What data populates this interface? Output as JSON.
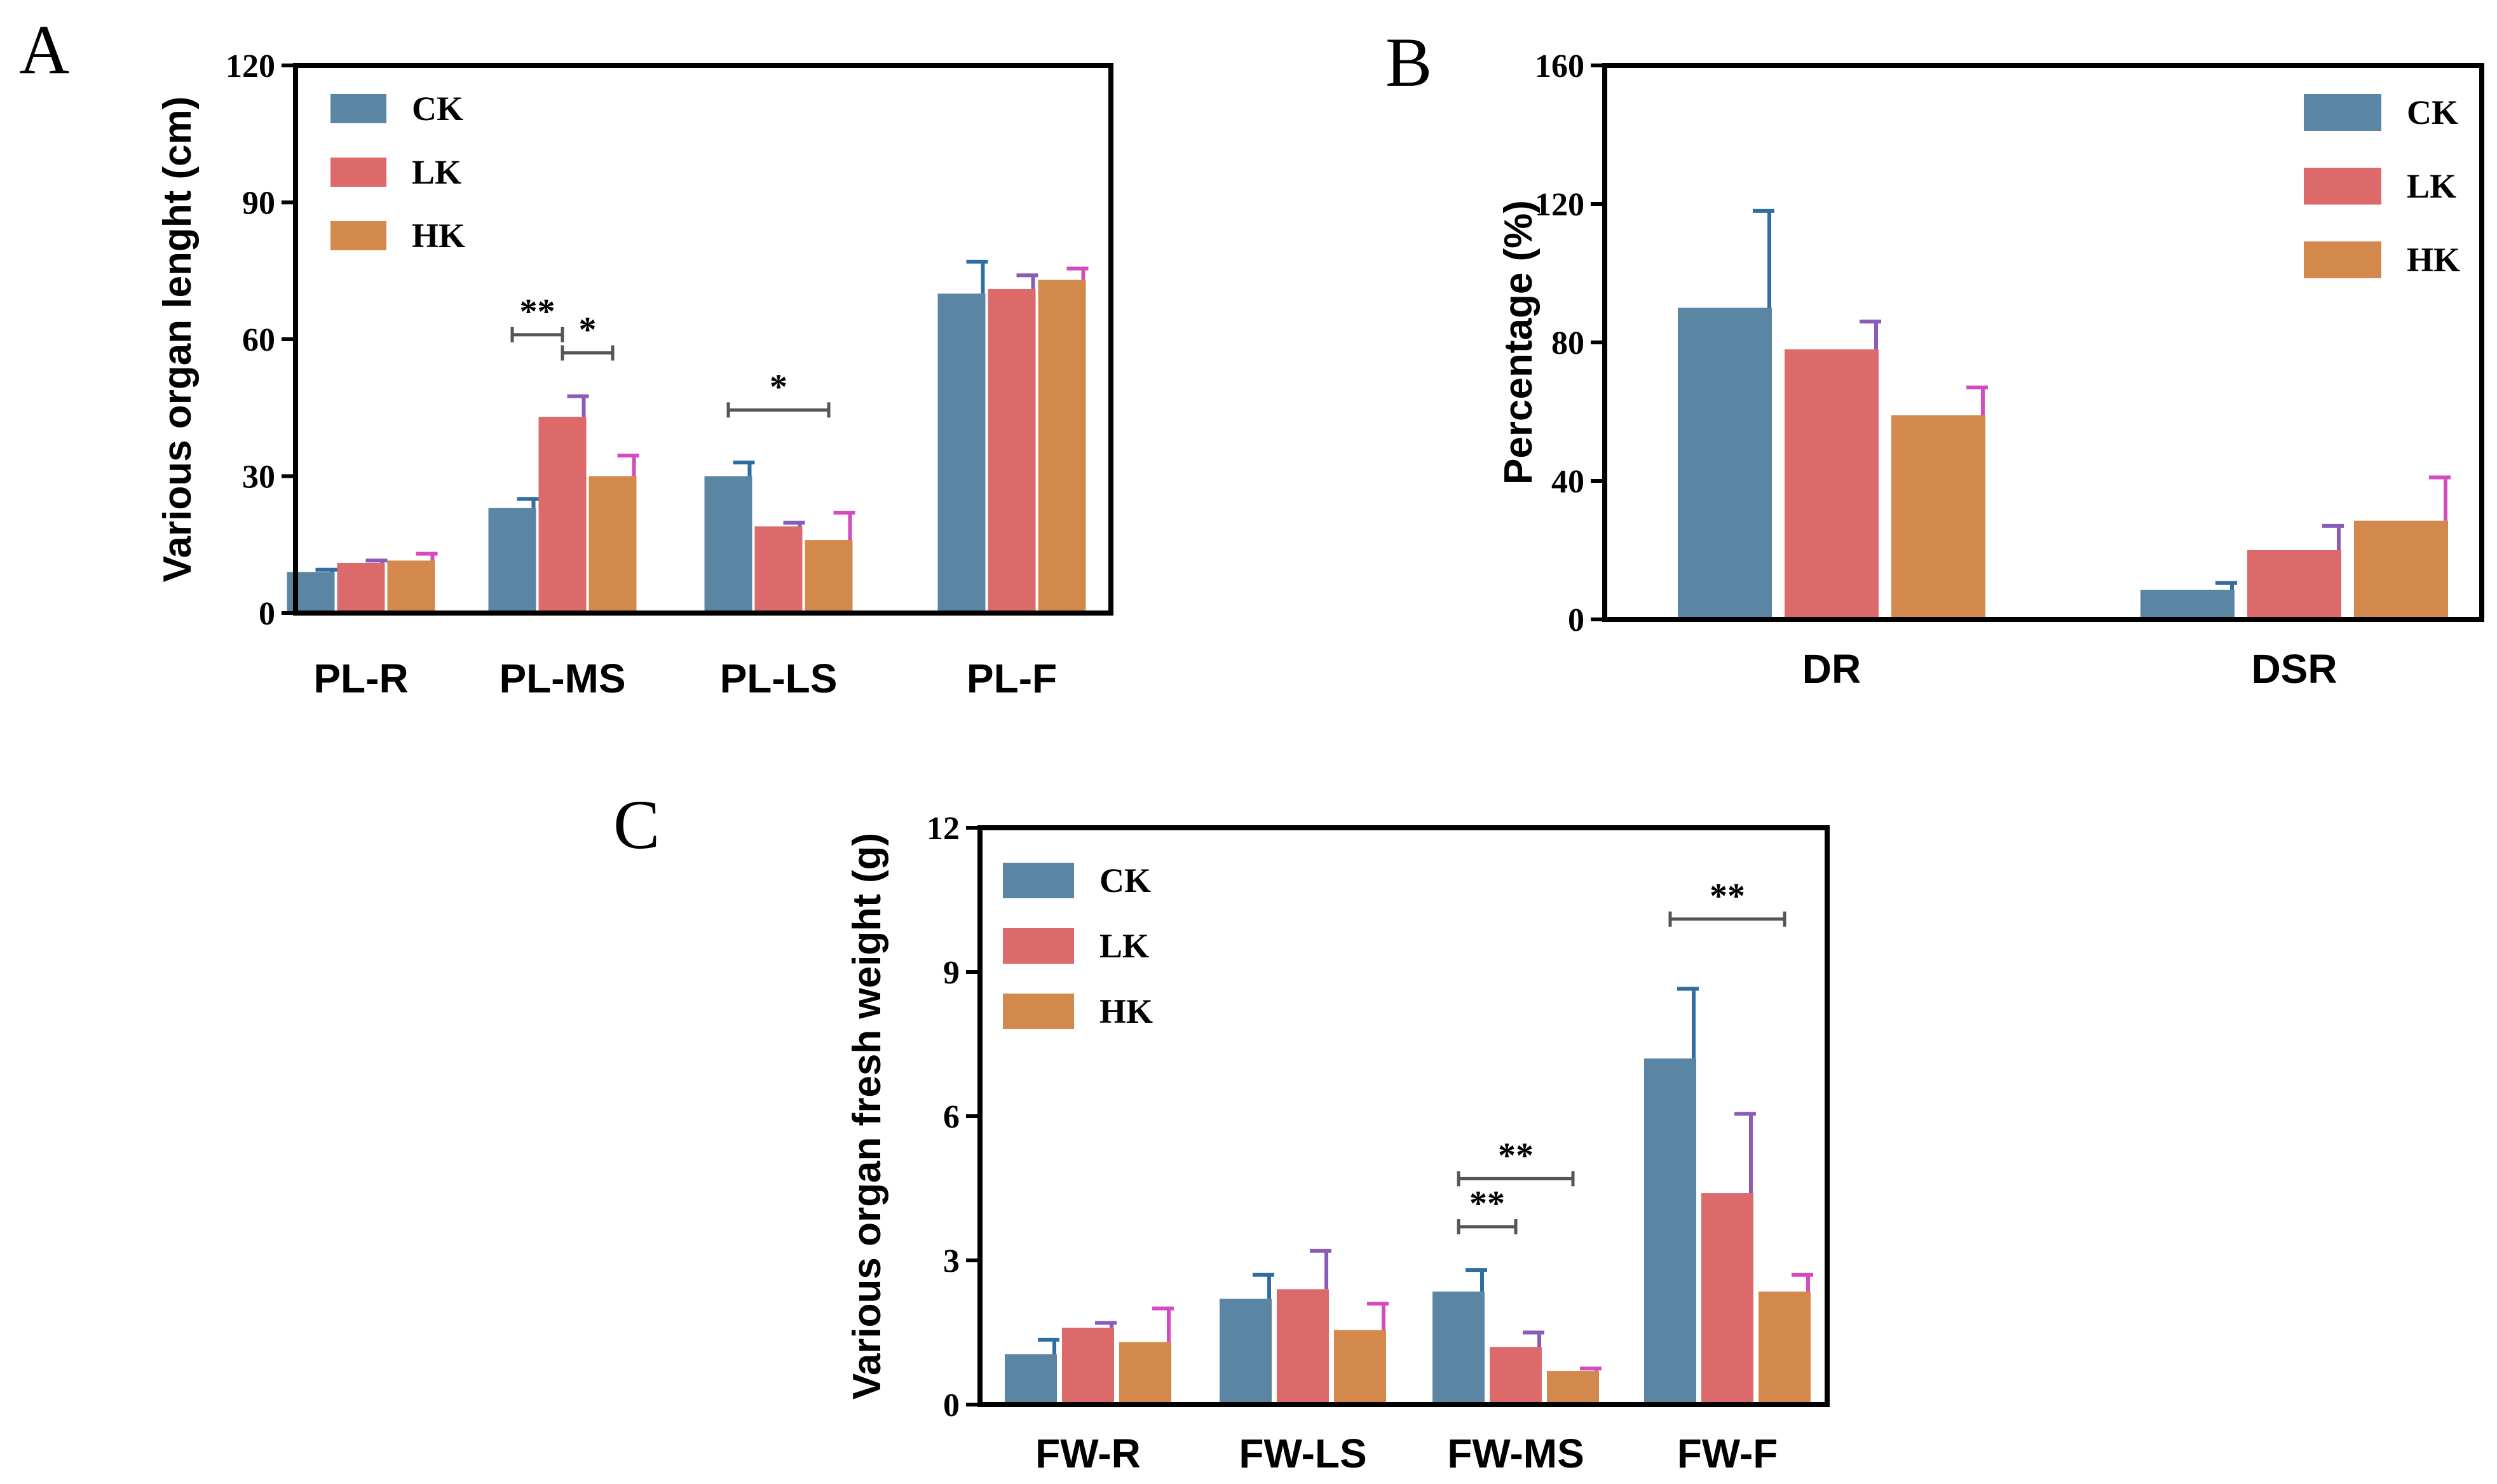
{
  "colors": {
    "CK": "#5b86a3",
    "LK": "#dc6a6a",
    "HK": "#d3894b",
    "err_CK": "#2f6da3",
    "err_LK": "#8a5bb8",
    "err_HK": "#d44bc0",
    "sig": "#555555",
    "axis": "#000000"
  },
  "chart_data": [
    {
      "panel": "A",
      "type": "bar",
      "ylabel": "Various organ lenght (cm)",
      "xlabel": "",
      "ylim": [
        0,
        120
      ],
      "yticks": [
        "0",
        "30",
        "60",
        "90",
        "120"
      ],
      "categories": [
        "PL-R",
        "PL-MS",
        "PL-LS",
        "PL-F"
      ],
      "legend_position": "top-left",
      "series": [
        {
          "name": "CK",
          "values": [
            9,
            23,
            30,
            70
          ],
          "errors": [
            0.5,
            2,
            3,
            7
          ]
        },
        {
          "name": "LK",
          "values": [
            11,
            43,
            19,
            71
          ],
          "errors": [
            0.5,
            4.5,
            0.8,
            3
          ]
        },
        {
          "name": "HK",
          "values": [
            11.5,
            30,
            16,
            73
          ],
          "errors": [
            1.5,
            4.5,
            6,
            2.5
          ]
        }
      ],
      "significance": [
        {
          "label": "**",
          "category": 1,
          "from": 0,
          "to": 1,
          "y": 61
        },
        {
          "label": "*",
          "category": 1,
          "from": 1,
          "to": 2,
          "y": 57
        },
        {
          "label": "*",
          "category": 2,
          "from": 0,
          "to": 2,
          "y": 44.5
        }
      ]
    },
    {
      "panel": "B",
      "type": "bar",
      "ylabel": "Percentage (%)",
      "xlabel": "",
      "ylim": [
        0,
        160
      ],
      "yticks": [
        "0",
        "40",
        "80",
        "120",
        "160"
      ],
      "categories": [
        "DR",
        "DSR"
      ],
      "legend_position": "top-right",
      "series": [
        {
          "name": "CK",
          "values": [
            90,
            8.5
          ],
          "errors": [
            28,
            2
          ]
        },
        {
          "name": "LK",
          "values": [
            78,
            20
          ],
          "errors": [
            8,
            7
          ]
        },
        {
          "name": "HK",
          "values": [
            59,
            28.5
          ],
          "errors": [
            8,
            12.5
          ]
        }
      ],
      "significance": []
    },
    {
      "panel": "C",
      "type": "bar",
      "ylabel": "Various organ fresh weight (g)",
      "xlabel": "",
      "ylim": [
        0,
        12
      ],
      "yticks": [
        "0",
        "3",
        "6",
        "9",
        "12"
      ],
      "categories": [
        "FW-R",
        "FW-LS",
        "FW-MS",
        "FW-F"
      ],
      "legend_position": "top-left",
      "series": [
        {
          "name": "CK",
          "values": [
            1.05,
            2.2,
            2.35,
            7.2
          ],
          "errors": [
            0.3,
            0.5,
            0.45,
            1.45
          ]
        },
        {
          "name": "LK",
          "values": [
            1.6,
            2.4,
            1.2,
            4.4
          ],
          "errors": [
            0.1,
            0.8,
            0.3,
            1.65
          ]
        },
        {
          "name": "HK",
          "values": [
            1.3,
            1.55,
            0.7,
            2.35
          ],
          "errors": [
            0.7,
            0.55,
            0.05,
            0.35
          ]
        }
      ],
      "significance": [
        {
          "label": "**",
          "category": 2,
          "from": 0,
          "to": 1,
          "y": 3.7
        },
        {
          "label": "**",
          "category": 2,
          "from": 0,
          "to": 2,
          "y": 4.7
        },
        {
          "label": "**",
          "category": 3,
          "from": 0,
          "to": 2,
          "y": 10.1
        }
      ]
    }
  ]
}
